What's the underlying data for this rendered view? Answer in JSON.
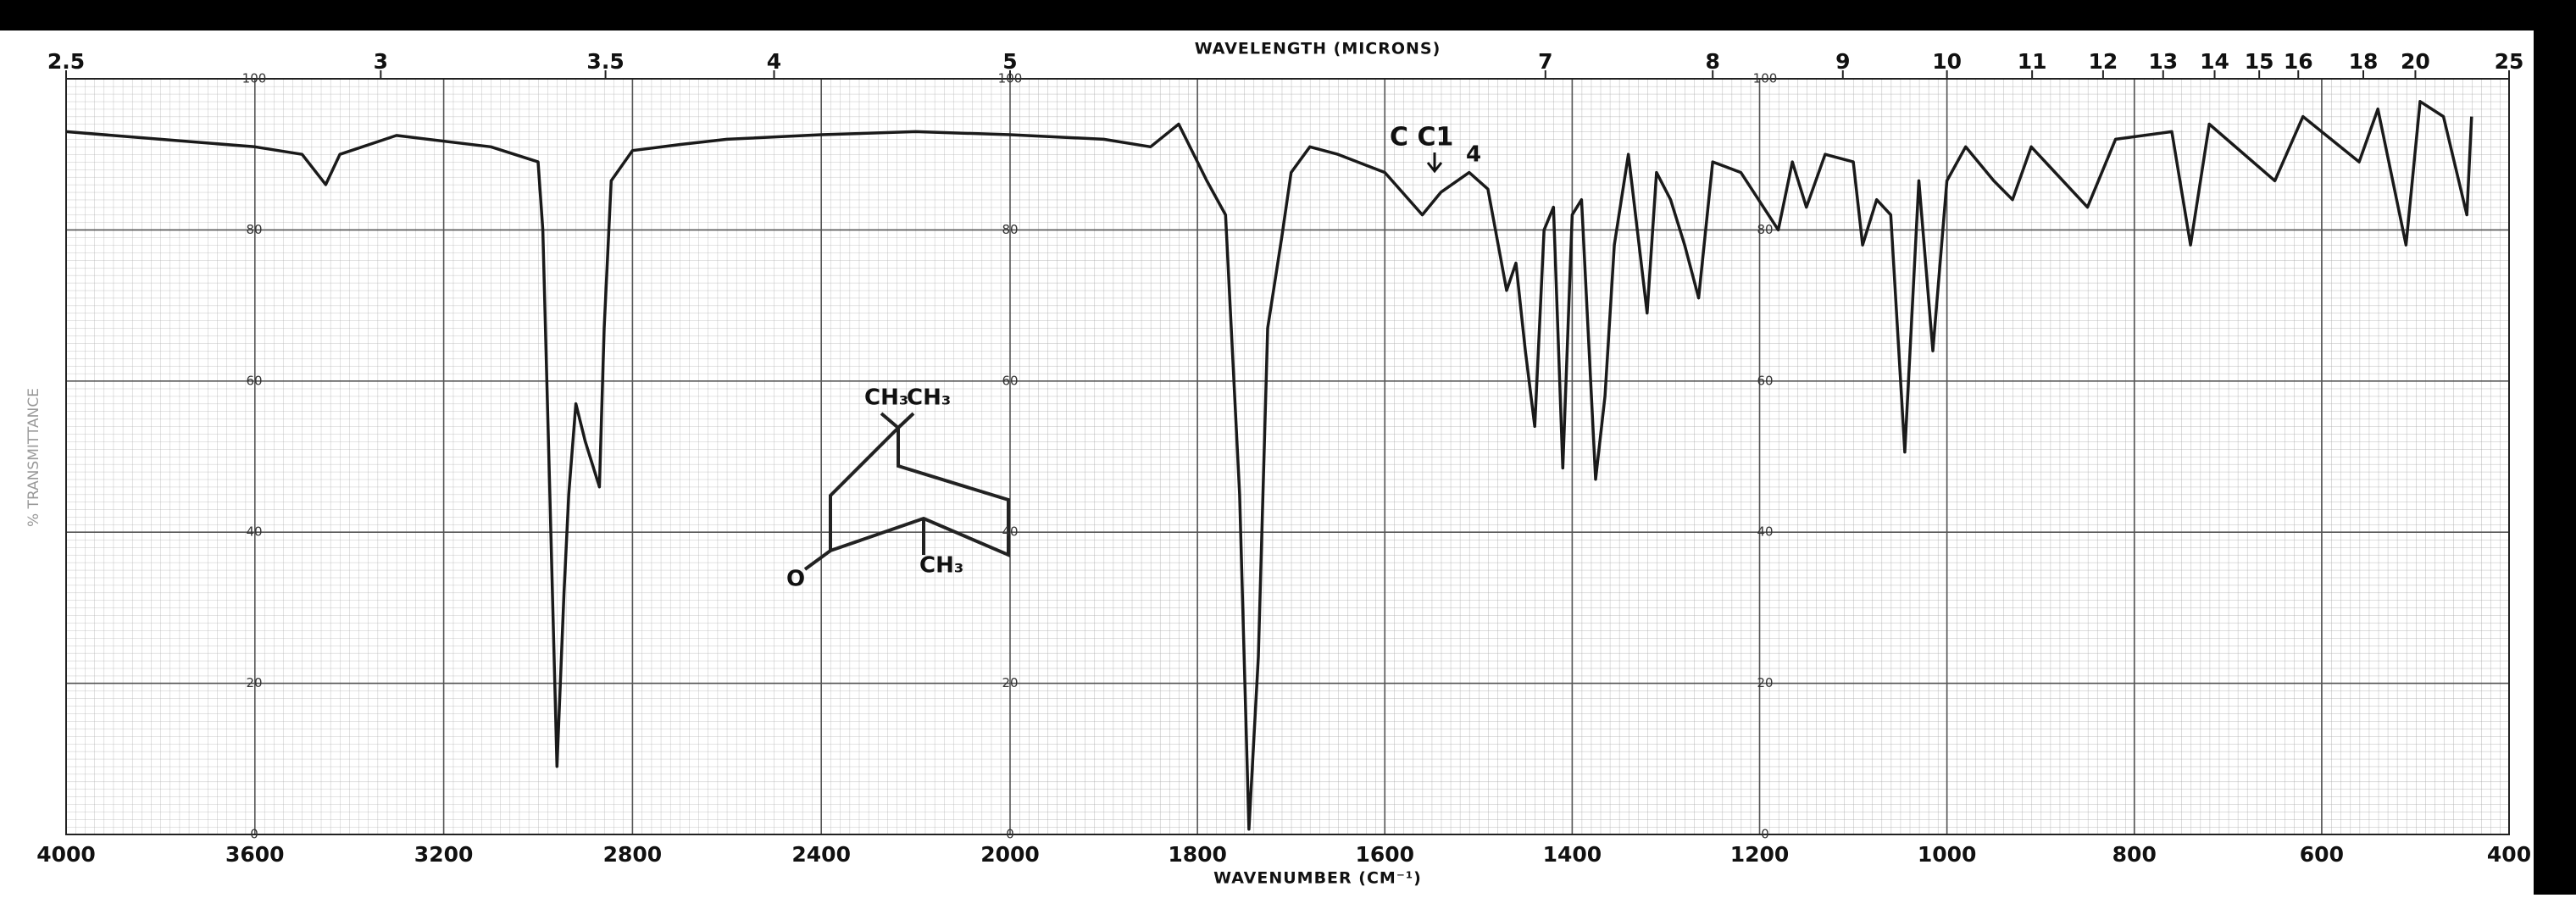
{
  "chart_data": {
    "type": "line",
    "x_label": "WAVENUMBER (CM⁻¹)",
    "x2_label": "WAVELENGTH (MICRONS)",
    "y_label": "% TRANSMITTANCE",
    "annotation": "C C1",
    "annotation_sub": "4",
    "structure_labels": [
      "CH₃",
      "CH₃",
      "CH₃",
      "O"
    ],
    "xlim": [
      4000,
      400
    ],
    "xticks": [
      4000,
      3600,
      3200,
      2800,
      2400,
      2000,
      1800,
      1600,
      1400,
      1200,
      1000,
      800,
      600,
      400
    ],
    "x2ticks": [
      2.5,
      3,
      3.5,
      4,
      5,
      7,
      8,
      9,
      10,
      11,
      12,
      13,
      14,
      15,
      16,
      18,
      20,
      25
    ],
    "ylim": [
      0,
      100
    ],
    "yticks": [
      0,
      20,
      40,
      60,
      80,
      100
    ],
    "grid": true,
    "series": [
      {
        "color": "#1a1a1a",
        "x": [
          4000,
          3800,
          3600,
          3500,
          3450,
          3420,
          3300,
          3100,
          3000,
          2990,
          2975,
          2960,
          2945,
          2935,
          2920,
          2900,
          2870,
          2860,
          2845,
          2800,
          2700,
          2600,
          2400,
          2200,
          2000,
          1900,
          1850,
          1820,
          1790,
          1770,
          1755,
          1745,
          1735,
          1725,
          1710,
          1700,
          1680,
          1650,
          1600,
          1560,
          1540,
          1510,
          1490,
          1470,
          1460,
          1450,
          1440,
          1430,
          1420,
          1410,
          1400,
          1390,
          1375,
          1365,
          1355,
          1340,
          1320,
          1310,
          1295,
          1280,
          1265,
          1250,
          1220,
          1180,
          1165,
          1150,
          1130,
          1100,
          1090,
          1075,
          1060,
          1045,
          1030,
          1015,
          1000,
          980,
          950,
          930,
          910,
          850,
          820,
          760,
          740,
          720,
          650,
          620,
          560,
          540,
          510,
          495,
          470,
          445,
          440
        ],
        "values": [
          93,
          92,
          91,
          90,
          86,
          90,
          92.5,
          91,
          89,
          80,
          45,
          9,
          32,
          45,
          57,
          52,
          46,
          67,
          86.5,
          90.5,
          91.3,
          92,
          92.6,
          93,
          92.6,
          92,
          91,
          94,
          86.5,
          82,
          45,
          0.7,
          23.5,
          67,
          79,
          87.6,
          91,
          90,
          87.6,
          82,
          85,
          87.6,
          85.4,
          72,
          75.6,
          64,
          54,
          80,
          83,
          48.5,
          82,
          84,
          47,
          58,
          78,
          90,
          69,
          87.6,
          84,
          78,
          71,
          89,
          87.6,
          80,
          89,
          83,
          90,
          89,
          78,
          84,
          82,
          50.6,
          86.5,
          64,
          86.5,
          91,
          86.5,
          84,
          91,
          83,
          92,
          93,
          78,
          94,
          86.5,
          95,
          89,
          96,
          78,
          97,
          95,
          82,
          95
        ]
      }
    ]
  }
}
